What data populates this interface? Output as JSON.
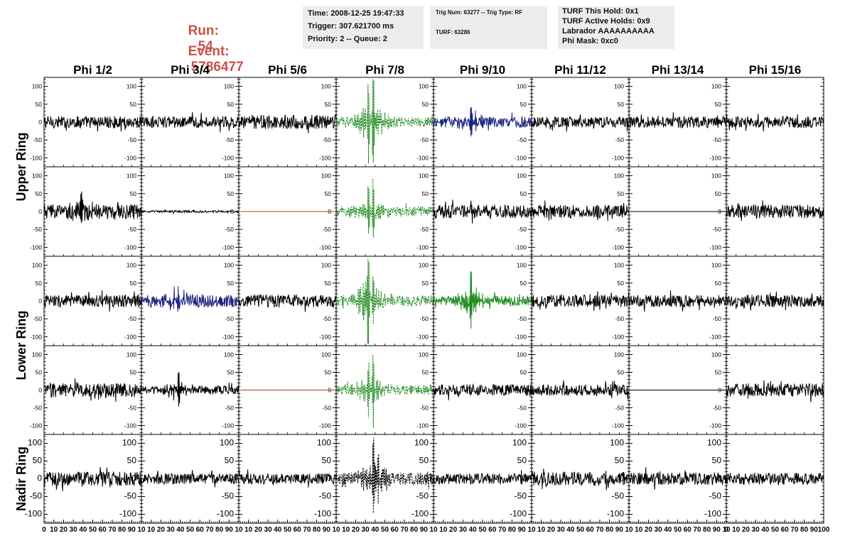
{
  "header": {
    "run_label": "Run:",
    "run_value": "54",
    "event_label": "Event:",
    "event_value": "5786477",
    "time_box": {
      "time": "Time: 2008-12-25 19:47:33",
      "trigger": "Trigger: 307.621700 ms",
      "priority": "Priority: 2 -- Queue: 2"
    },
    "trig_box": {
      "trig": "Trig Num: 63277 -- Trig Type: RF",
      "turf": "TURF: 63286"
    },
    "turf_box": {
      "this_hold": "TURF This Hold: 0x1",
      "active_holds": "TURF Active Holds: 0x9",
      "labrador": "Labrador AAAAAAAAAA",
      "phi_mask": "Phi Mask: 0xc0"
    }
  },
  "chart_data": {
    "type": "line",
    "columns": [
      "Phi 1/2",
      "Phi 3/4",
      "Phi 5/6",
      "Phi 7/8",
      "Phi 9/10",
      "Phi 11/12",
      "Phi 13/14",
      "Phi 15/16"
    ],
    "row_labels": [
      {
        "label": "Upper Ring",
        "rows": [
          0,
          1
        ]
      },
      {
        "label": "Lower Ring",
        "rows": [
          2,
          3
        ]
      },
      {
        "label": "Nadir Ring",
        "rows": [
          4
        ]
      }
    ],
    "xlim": [
      0,
      100
    ],
    "ylim": [
      -125,
      125
    ],
    "x_ticks": [
      0,
      10,
      20,
      30,
      40,
      50,
      60,
      70,
      80,
      90,
      100
    ],
    "x_tick_labels": [
      "0",
      "10",
      "20",
      "30",
      "40",
      "50",
      "60",
      "70",
      "80",
      "90",
      "100"
    ],
    "x_tick_labels_inner": [
      "10",
      "20",
      "30",
      "40",
      "50",
      "60",
      "70",
      "80",
      "90",
      "10"
    ],
    "y_ticks": [
      -100,
      -50,
      0,
      50,
      100
    ],
    "y_tick_labels": [
      "-100",
      "-50",
      "0",
      "50",
      "100"
    ],
    "colors": {
      "black": "#000000",
      "green": "#228b22",
      "blue": "#1a237e",
      "red": "#c0392b",
      "grey": "#555555"
    },
    "panels": [
      [
        {
          "color": "black",
          "amp": 17,
          "dashed": false
        },
        {
          "color": "black",
          "amp": 16,
          "dashed": false
        },
        {
          "color": "black",
          "amp": 20,
          "dashed": false
        },
        {
          "color": "green",
          "amp": 14,
          "pulse": 115,
          "pulse_x": 36,
          "dashed": true
        },
        {
          "color": "blue",
          "amp": 15,
          "pulse": 28,
          "pulse_x": 40,
          "dashed": false
        },
        {
          "color": "black",
          "amp": 15,
          "dashed": false
        },
        {
          "color": "black",
          "amp": 16,
          "dashed": false
        },
        {
          "color": "black",
          "amp": 16,
          "dashed": false
        }
      ],
      [
        {
          "color": "black",
          "amp": 20,
          "pulse": 35,
          "pulse_x": 38,
          "dashed": false
        },
        {
          "color": "black",
          "amp": 3,
          "dashed": false
        },
        {
          "color": "red",
          "amp": 0,
          "dashed": false
        },
        {
          "color": "green",
          "amp": 14,
          "pulse": 70,
          "pulse_x": 36,
          "dashed": true
        },
        {
          "color": "black",
          "amp": 19,
          "dashed": false
        },
        {
          "color": "black",
          "amp": 18,
          "dashed": false
        },
        {
          "color": "black",
          "amp": 0,
          "dashed": false
        },
        {
          "color": "black",
          "amp": 19,
          "dashed": false
        }
      ],
      [
        {
          "color": "black",
          "amp": 17,
          "dashed": false
        },
        {
          "color": "blue",
          "amp": 18,
          "pulse": 30,
          "pulse_x": 36,
          "dashed": false
        },
        {
          "color": "black",
          "amp": 18,
          "dashed": false
        },
        {
          "color": "green",
          "amp": 15,
          "pulse": 115,
          "pulse_x": 33,
          "dashed": true
        },
        {
          "color": "green",
          "amp": 14,
          "pulse": 60,
          "pulse_x": 38,
          "dashed": false
        },
        {
          "color": "black",
          "amp": 17,
          "dashed": false
        },
        {
          "color": "black",
          "amp": 17,
          "dashed": false
        },
        {
          "color": "black",
          "amp": 17,
          "dashed": false
        }
      ],
      [
        {
          "color": "black",
          "amp": 20,
          "dashed": false
        },
        {
          "color": "black",
          "amp": 12,
          "pulse": 35,
          "pulse_x": 38,
          "dashed": false
        },
        {
          "color": "red",
          "amp": 0,
          "dashed": false
        },
        {
          "color": "green",
          "amp": 14,
          "pulse": 85,
          "pulse_x": 36,
          "dashed": true
        },
        {
          "color": "black",
          "amp": 16,
          "dashed": false
        },
        {
          "color": "black",
          "amp": 16,
          "dashed": false
        },
        {
          "color": "black",
          "amp": 0,
          "dashed": false
        },
        {
          "color": "black",
          "amp": 19,
          "dashed": false
        }
      ],
      [
        {
          "color": "black",
          "amp": 20,
          "dashed": false
        },
        {
          "color": "black",
          "amp": 15,
          "dashed": false
        },
        {
          "color": "black",
          "amp": 15,
          "dashed": false
        },
        {
          "color": "black",
          "amp": 18,
          "pulse": 90,
          "pulse_x": 40,
          "dashed": true
        },
        {
          "color": "black",
          "amp": 15,
          "dashed": false
        },
        {
          "color": "black",
          "amp": 20,
          "dashed": false
        },
        {
          "color": "black",
          "amp": 18,
          "dashed": false
        },
        {
          "color": "black",
          "amp": 17,
          "dashed": false
        }
      ]
    ]
  }
}
